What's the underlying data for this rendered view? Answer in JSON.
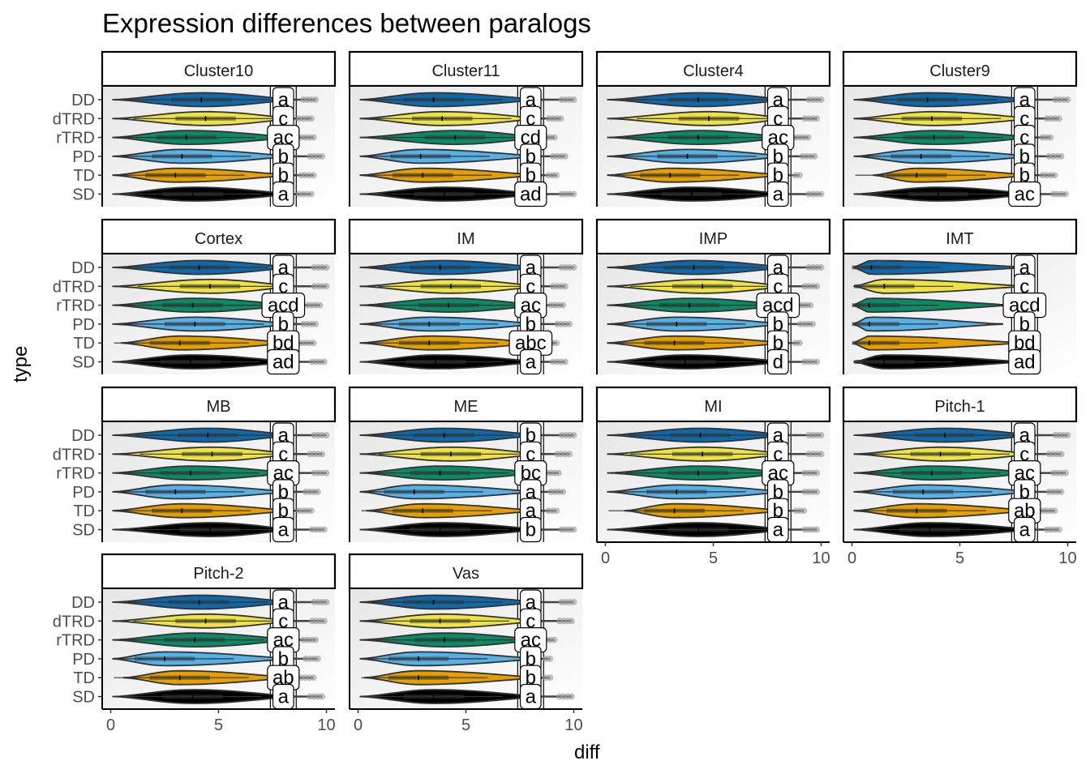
{
  "chart_data": {
    "type": "violin",
    "title": "Expression differences between paralogs",
    "xlabel": "diff",
    "ylabel": "type",
    "xlim": [
      0,
      10
    ],
    "x_ticks": [
      "0",
      "5",
      "10"
    ],
    "categories": [
      "DD",
      "dTRD",
      "rTRD",
      "PD",
      "TD",
      "SD"
    ],
    "series_colors": {
      "DD": "#0f68a9",
      "dTRD": "#efe243",
      "rTRD": "#0b8a63",
      "PD": "#56b1e8",
      "TD": "#e69f00",
      "SD": "#000000"
    },
    "panels": [
      {
        "name": "Cluster10",
        "labels": {
          "DD": "a",
          "dTRD": "c",
          "rTRD": "ac",
          "PD": "b",
          "TD": "b",
          "SD": "a"
        },
        "ranges": {
          "DD": [
            0,
            9.5
          ],
          "dTRD": [
            0,
            9.3
          ],
          "rTRD": [
            0,
            9.4
          ],
          "PD": [
            0,
            9.8
          ],
          "TD": [
            0,
            9.4
          ],
          "SD": [
            0,
            9.3
          ]
        },
        "medians": {
          "DD": 4.2,
          "dTRD": 4.4,
          "rTRD": 3.5,
          "PD": 3.3,
          "TD": 3.0,
          "SD": 3.8
        }
      },
      {
        "name": "Cluster11",
        "labels": {
          "DD": "a",
          "dTRD": "c",
          "rTRD": "cd",
          "PD": "b",
          "TD": "b",
          "SD": "ad"
        },
        "ranges": {
          "DD": [
            0,
            10
          ],
          "dTRD": [
            0,
            9.4
          ],
          "rTRD": [
            0,
            9.1
          ],
          "PD": [
            0,
            9.6
          ],
          "TD": [
            0,
            9.2
          ],
          "SD": [
            0,
            10
          ]
        },
        "medians": {
          "DD": 3.5,
          "dTRD": 3.9,
          "rTRD": 4.5,
          "PD": 2.9,
          "TD": 3.0,
          "SD": 4.0
        }
      },
      {
        "name": "Cluster4",
        "labels": {
          "DD": "a",
          "dTRD": "c",
          "rTRD": "ac",
          "PD": "b",
          "TD": "b",
          "SD": "a"
        },
        "ranges": {
          "DD": [
            0,
            10
          ],
          "dTRD": [
            0,
            9.8
          ],
          "rTRD": [
            0,
            9.4
          ],
          "PD": [
            0,
            9.7
          ],
          "TD": [
            0,
            9.0
          ],
          "SD": [
            0,
            10
          ]
        },
        "medians": {
          "DD": 4.3,
          "dTRD": 4.8,
          "rTRD": 4.3,
          "PD": 3.8,
          "TD": 3.0,
          "SD": 4.0
        }
      },
      {
        "name": "Cluster9",
        "labels": {
          "DD": "a",
          "dTRD": "c",
          "rTRD": "c",
          "PD": "b",
          "TD": "b",
          "SD": "ac"
        },
        "ranges": {
          "DD": [
            0,
            10
          ],
          "dTRD": [
            0,
            9.6
          ],
          "rTRD": [
            0,
            9.2
          ],
          "PD": [
            0,
            9.7
          ],
          "TD": [
            0.9,
            9.4
          ],
          "SD": [
            0,
            9.9
          ]
        },
        "medians": {
          "DD": 3.5,
          "dTRD": 3.7,
          "rTRD": 3.8,
          "PD": 3.2,
          "TD": 3.0,
          "SD": 4.0
        }
      },
      {
        "name": "Cortex",
        "labels": {
          "DD": "a",
          "dTRD": "c",
          "rTRD": "acd",
          "PD": "b",
          "TD": "bd",
          "SD": "ad"
        },
        "ranges": {
          "DD": [
            0,
            10
          ],
          "dTRD": [
            0,
            10
          ],
          "rTRD": [
            0,
            9.7
          ],
          "PD": [
            0,
            9.5
          ],
          "TD": [
            0.4,
            9.4
          ],
          "SD": [
            0,
            9.9
          ]
        },
        "medians": {
          "DD": 4.1,
          "dTRD": 4.6,
          "rTRD": 3.8,
          "PD": 3.9,
          "TD": 3.2,
          "SD": 3.7
        }
      },
      {
        "name": "IM",
        "labels": {
          "DD": "a",
          "dTRD": "c",
          "rTRD": "ac",
          "PD": "b",
          "TD": "abc",
          "SD": "a"
        },
        "ranges": {
          "DD": [
            0,
            10
          ],
          "dTRD": [
            0,
            9.6
          ],
          "rTRD": [
            0,
            9.5
          ],
          "PD": [
            0,
            9.8
          ],
          "TD": [
            0,
            9.2
          ],
          "SD": [
            0,
            9.6
          ]
        },
        "medians": {
          "DD": 3.8,
          "dTRD": 4.3,
          "rTRD": 4.2,
          "PD": 3.3,
          "TD": 3.3,
          "SD": 3.6
        }
      },
      {
        "name": "IMP",
        "labels": {
          "DD": "a",
          "dTRD": "c",
          "rTRD": "acd",
          "PD": "b",
          "TD": "b",
          "SD": "d"
        },
        "ranges": {
          "DD": [
            0,
            10
          ],
          "dTRD": [
            0,
            9.8
          ],
          "rTRD": [
            0,
            9.5
          ],
          "PD": [
            0,
            9.6
          ],
          "TD": [
            0,
            9.0
          ],
          "SD": [
            0,
            9.8
          ]
        },
        "medians": {
          "DD": 4.1,
          "dTRD": 4.5,
          "rTRD": 3.9,
          "PD": 3.3,
          "TD": 3.2,
          "SD": 3.7
        }
      },
      {
        "name": "IMT",
        "labels": {
          "DD": "a",
          "dTRD": "c",
          "rTRD": "acd",
          "PD": "b",
          "TD": "bd",
          "SD": "ad"
        },
        "ranges": {
          "DD": [
            0,
            8.3
          ],
          "dTRD": [
            0,
            8.2
          ],
          "rTRD": [
            0,
            7.5
          ],
          "PD": [
            0,
            7.0
          ],
          "TD": [
            0,
            8.1
          ],
          "SD": [
            0,
            8.1
          ]
        },
        "medians": {
          "DD": 0.9,
          "dTRD": 1.5,
          "rTRD": 0.8,
          "PD": 0.8,
          "TD": 0.8,
          "SD": 1.5
        }
      },
      {
        "name": "MB",
        "labels": {
          "DD": "a",
          "dTRD": "c",
          "rTRD": "ac",
          "PD": "b",
          "TD": "b",
          "SD": "a"
        },
        "ranges": {
          "DD": [
            0,
            10
          ],
          "dTRD": [
            0,
            9.8
          ],
          "rTRD": [
            0,
            10
          ],
          "PD": [
            0,
            9.6
          ],
          "TD": [
            0,
            9.3
          ],
          "SD": [
            0,
            9.9
          ]
        },
        "medians": {
          "DD": 4.5,
          "dTRD": 4.7,
          "rTRD": 3.7,
          "PD": 3.0,
          "TD": 3.3,
          "SD": 4.6
        }
      },
      {
        "name": "ME",
        "labels": {
          "DD": "b",
          "dTRD": "c",
          "rTRD": "bc",
          "PD": "a",
          "TD": "a",
          "SD": "b"
        },
        "ranges": {
          "DD": [
            0,
            10
          ],
          "dTRD": [
            0,
            9.8
          ],
          "rTRD": [
            0,
            9.3
          ],
          "PD": [
            0,
            9.5
          ],
          "TD": [
            0.3,
            9.2
          ],
          "SD": [
            0,
            10
          ]
        },
        "medians": {
          "DD": 4.0,
          "dTRD": 4.3,
          "rTRD": 3.8,
          "PD": 2.6,
          "TD": 3.0,
          "SD": 3.8
        }
      },
      {
        "name": "MI",
        "labels": {
          "DD": "a",
          "dTRD": "c",
          "rTRD": "ac",
          "PD": "b",
          "TD": "b",
          "SD": "a"
        },
        "ranges": {
          "DD": [
            0,
            10
          ],
          "dTRD": [
            0,
            10
          ],
          "rTRD": [
            0,
            9.8
          ],
          "PD": [
            0,
            9.8
          ],
          "TD": [
            0.8,
            9.2
          ],
          "SD": [
            0,
            9.8
          ]
        },
        "medians": {
          "DD": 4.4,
          "dTRD": 4.5,
          "rTRD": 4.3,
          "PD": 3.3,
          "TD": 3.2,
          "SD": 4.3
        }
      },
      {
        "name": "Pitch-1",
        "labels": {
          "DD": "a",
          "dTRD": "c",
          "rTRD": "ac",
          "PD": "b",
          "TD": "ab",
          "SD": "a"
        },
        "ranges": {
          "DD": [
            0,
            10
          ],
          "dTRD": [
            0,
            9.7
          ],
          "rTRD": [
            0,
            9.9
          ],
          "PD": [
            0,
            9.7
          ],
          "TD": [
            0,
            9.4
          ],
          "SD": [
            0,
            9.6
          ]
        },
        "medians": {
          "DD": 4.3,
          "dTRD": 4.1,
          "rTRD": 3.7,
          "PD": 3.3,
          "TD": 3.0,
          "SD": 3.6
        }
      },
      {
        "name": "Pitch-2",
        "labels": {
          "DD": "a",
          "dTRD": "c",
          "rTRD": "ac",
          "PD": "b",
          "TD": "ab",
          "SD": "a"
        },
        "ranges": {
          "DD": [
            0,
            10
          ],
          "dTRD": [
            0,
            9.9
          ],
          "rTRD": [
            0,
            9.5
          ],
          "PD": [
            0,
            9.6
          ],
          "TD": [
            0.5,
            9.4
          ],
          "SD": [
            0,
            9.8
          ]
        },
        "medians": {
          "DD": 4.1,
          "dTRD": 4.4,
          "rTRD": 3.9,
          "PD": 2.5,
          "TD": 3.2,
          "SD": 3.8
        }
      },
      {
        "name": "Vas",
        "labels": {
          "DD": "a",
          "dTRD": "c",
          "rTRD": "ac",
          "PD": "b",
          "TD": "b",
          "SD": "a"
        },
        "ranges": {
          "DD": [
            0,
            10
          ],
          "dTRD": [
            0,
            9.9
          ],
          "rTRD": [
            0,
            9.1
          ],
          "PD": [
            0,
            8.9
          ],
          "TD": [
            0.2,
            8.9
          ],
          "SD": [
            0,
            9.9
          ]
        },
        "medians": {
          "DD": 3.5,
          "dTRD": 3.8,
          "rTRD": 4.0,
          "PD": 2.8,
          "TD": 2.8,
          "SD": 3.5
        }
      }
    ]
  }
}
